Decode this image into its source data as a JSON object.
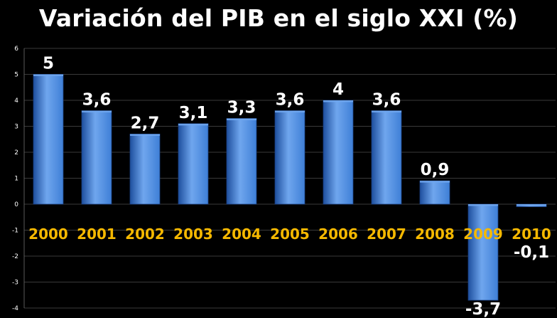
{
  "chart_data": {
    "type": "bar",
    "title": "Variación del PIB en el siglo XXI (%)",
    "categories": [
      "2000",
      "2001",
      "2002",
      "2003",
      "2004",
      "2005",
      "2006",
      "2007",
      "2008",
      "2009",
      "2010"
    ],
    "values": [
      5,
      3.6,
      2.7,
      3.1,
      3.3,
      3.6,
      4,
      3.6,
      0.9,
      -3.7,
      -0.1
    ],
    "data_labels": [
      "5",
      "3,6",
      "2,7",
      "3,1",
      "3,3",
      "3,6",
      "4",
      "3,6",
      "0,9",
      "-3,7",
      "-0,1"
    ],
    "y_ticks": [
      "6",
      "5",
      "4",
      "3",
      "2",
      "1",
      "0",
      "-1",
      "-2",
      "-3",
      "-4"
    ],
    "ylim": [
      -4,
      6
    ],
    "xlabel": "",
    "ylabel": "",
    "grid": true,
    "colors": {
      "background": "#000000",
      "bar": "#3f7fd6",
      "bar_dark": "#1e4f9e",
      "bar_light": "#6fa6ee",
      "grid": "#3a3a3a",
      "category_label": "#f5b800",
      "data_label": "#ffffff"
    }
  }
}
